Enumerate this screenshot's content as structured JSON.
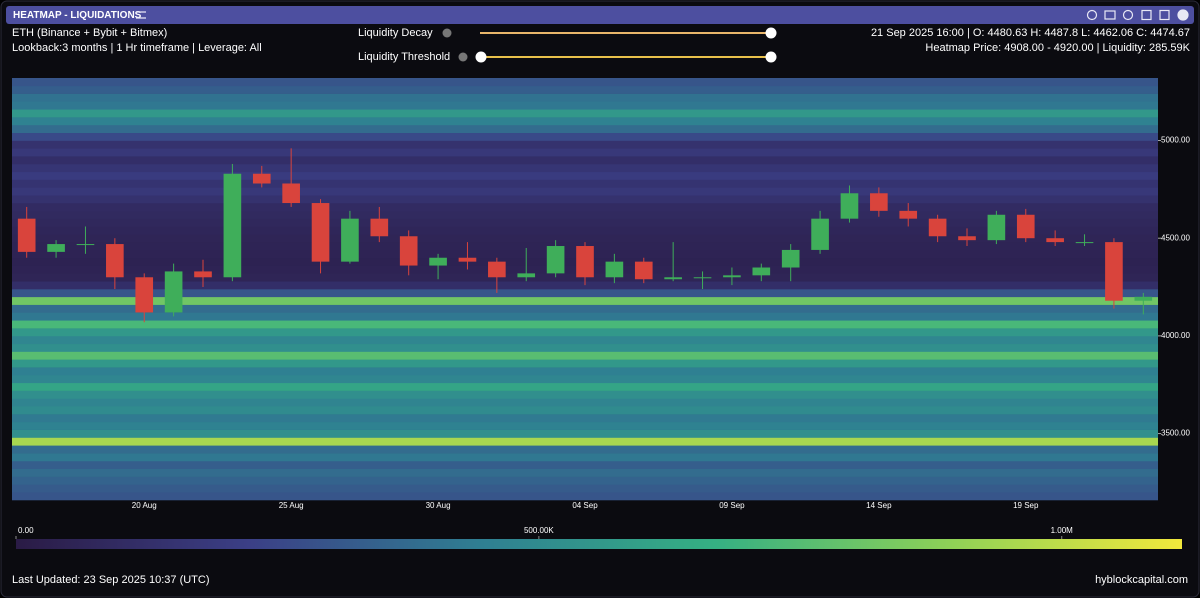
{
  "header": {
    "title": "HEATMAP - LIQUIDATIONS"
  },
  "info": {
    "asset": "ETH (Binance + Bybit + Bitmex)",
    "settings": "Lookback:3 months | 1 Hr timeframe | Leverage: All",
    "ohlc": "21 Sep 2025 16:00 | O: 4480.63 H: 4487.8 L: 4462.06 C: 4474.67",
    "heatmap_info": "Heatmap Price: 4908.00 - 4920.00 | Liquidity: 285.59K"
  },
  "controls": {
    "decay_label": "Liquidity Decay",
    "threshold_label": "Liquidity Threshold"
  },
  "footer": {
    "updated": "Last Updated: 23 Sep 2025 10:37 (UTC)",
    "brand": "hyblockcapital.com"
  },
  "chart_data": {
    "type": "heatmap",
    "categories": [
      null,
      null,
      null,
      null,
      "20 Aug",
      null,
      null,
      null,
      null,
      "25 Aug",
      null,
      null,
      null,
      null,
      "30 Aug",
      null,
      null,
      null,
      null,
      "04 Sep",
      null,
      null,
      null,
      null,
      "09 Sep",
      null,
      null,
      null,
      null,
      "14 Sep",
      null,
      null,
      null,
      null,
      "19 Sep",
      null,
      null,
      null,
      null
    ],
    "open": [
      4600,
      4430,
      4470,
      4470,
      4300,
      4120,
      4330,
      4300,
      4830,
      4780,
      4680,
      4380,
      4600,
      4510,
      4360,
      4400,
      4380,
      4300,
      4320,
      4460,
      4300,
      4380,
      4290,
      4300,
      4300,
      4310,
      4350,
      4440,
      4600,
      4730,
      4640,
      4600,
      4510,
      4490,
      4620,
      4500,
      4480,
      4480,
      4180
    ],
    "high": [
      4660,
      4490,
      4560,
      4500,
      4320,
      4370,
      4390,
      4880,
      4870,
      4960,
      4700,
      4640,
      4660,
      4540,
      4420,
      4480,
      4400,
      4450,
      4490,
      4480,
      4420,
      4400,
      4480,
      4330,
      4350,
      4370,
      4470,
      4640,
      4770,
      4760,
      4680,
      4620,
      4550,
      4640,
      4650,
      4540,
      4520,
      4500,
      4220
    ],
    "low": [
      4400,
      4400,
      4420,
      4240,
      4070,
      4100,
      4250,
      4280,
      4760,
      4660,
      4320,
      4370,
      4480,
      4310,
      4290,
      4340,
      4220,
      4280,
      4300,
      4260,
      4270,
      4270,
      4280,
      4240,
      4260,
      4280,
      4280,
      4420,
      4580,
      4610,
      4560,
      4480,
      4460,
      4470,
      4480,
      4460,
      4460,
      4140,
      4110
    ],
    "close": [
      4430,
      4470,
      4470,
      4300,
      4120,
      4330,
      4300,
      4830,
      4780,
      4680,
      4380,
      4600,
      4510,
      4360,
      4400,
      4380,
      4300,
      4320,
      4460,
      4300,
      4380,
      4290,
      4300,
      4300,
      4310,
      4350,
      4440,
      4600,
      4730,
      4640,
      4600,
      4510,
      4490,
      4620,
      4500,
      4480,
      4480,
      4180,
      4200
    ],
    "up_color": "#3fae5a",
    "down_color": "#d9443c",
    "levels": [
      3160,
      3200,
      3240,
      3280,
      3320,
      3360,
      3400,
      3440,
      3480,
      3520,
      3560,
      3600,
      3640,
      3680,
      3720,
      3760,
      3800,
      3840,
      3880,
      3920,
      3960,
      4000,
      4040,
      4080,
      4120,
      4160,
      4200,
      4240,
      4280,
      4320,
      4360,
      4400,
      4440,
      4480,
      4520,
      4560,
      4600,
      4640,
      4680,
      4720,
      4760,
      4800,
      4840,
      4880,
      4920,
      4960,
      5000,
      5040,
      5080,
      5120,
      5160,
      5200,
      5240,
      5280,
      5320
    ],
    "liquidity": [
      300000,
      320000,
      350000,
      380000,
      330000,
      420000,
      380000,
      950000,
      520000,
      460000,
      430000,
      500000,
      470000,
      520000,
      620000,
      480000,
      450000,
      560000,
      760000,
      520000,
      480000,
      560000,
      720000,
      420000,
      380000,
      820000,
      300000,
      120000,
      60000,
      50000,
      45000,
      50000,
      55000,
      60000,
      70000,
      80000,
      90000,
      100000,
      140000,
      180000,
      150000,
      200000,
      160000,
      120000,
      180000,
      140000,
      260000,
      380000,
      460000,
      560000,
      420000,
      400000,
      330000,
      300000
    ],
    "ylim": [
      3160,
      5320
    ],
    "yticks": [
      {
        "value": 3500,
        "label": "3500.00"
      },
      {
        "value": 4000,
        "label": "4000.00"
      },
      {
        "value": 4500,
        "label": "4500.00"
      },
      {
        "value": 5000,
        "label": "5000.00"
      }
    ],
    "colorbar_lim": [
      0,
      1115000
    ],
    "colorbar_ticks": [
      {
        "value": 0,
        "label": "0.00"
      },
      {
        "value": 500000,
        "label": "500.00K"
      },
      {
        "value": 1000000,
        "label": "1.00M"
      }
    ],
    "colormap": [
      "#2a1b45",
      "#3b3f86",
      "#2f7f92",
      "#35b083",
      "#8ed157",
      "#f2e83c"
    ]
  }
}
